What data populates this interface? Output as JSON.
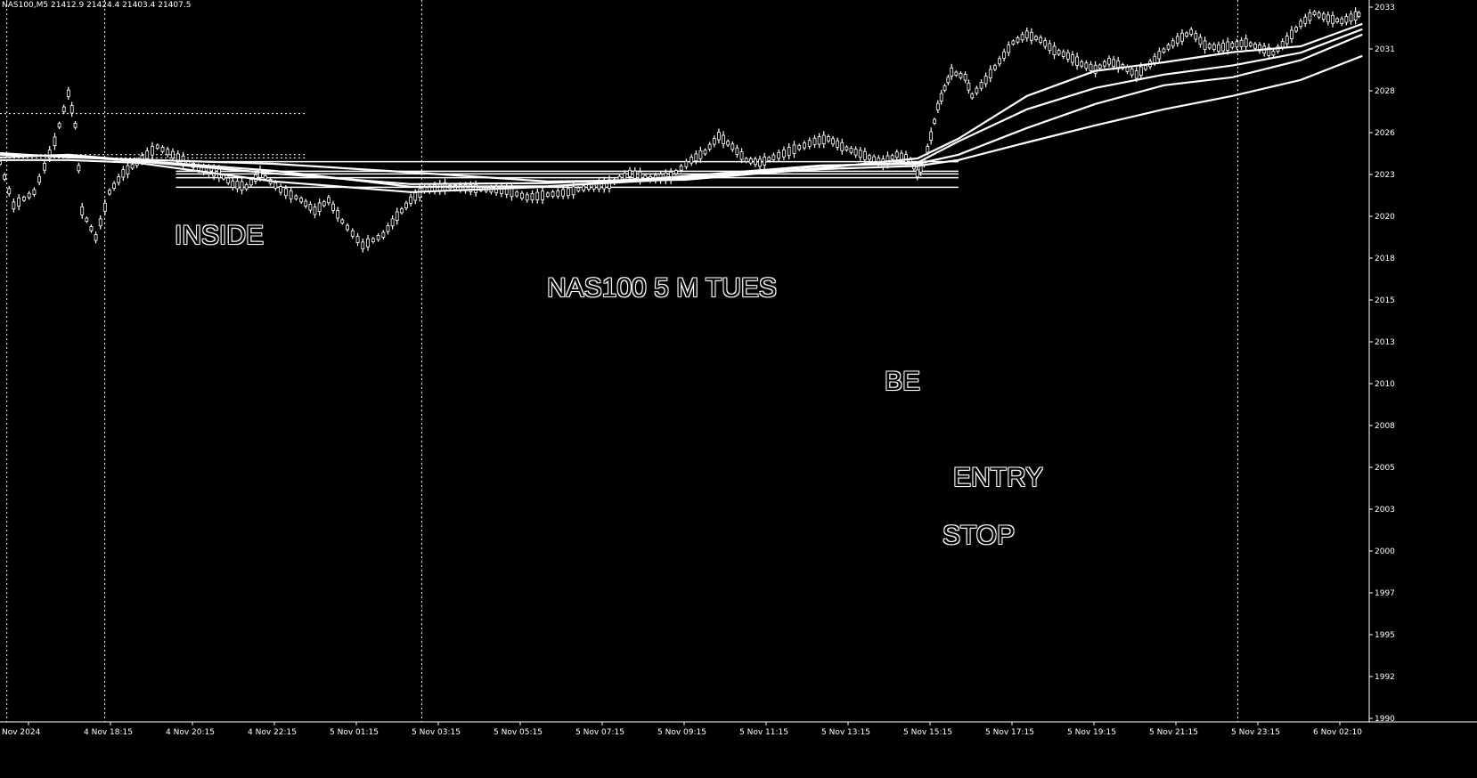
{
  "header": {
    "text": "NAS100,M5  21412.9 21424.4 21403.4 21407.5"
  },
  "annotations": {
    "inside": "INSIDE",
    "title": "NAS100 5 M   TUES",
    "be": "BE",
    "entry": "ENTRY",
    "stop": "STOP"
  },
  "colors": {
    "background": "#000000",
    "foreground": "#ffffff"
  },
  "chart_data": {
    "type": "line",
    "x_tick_labels": [
      "Nov 2024",
      "4 Nov 18:15",
      "4 Nov 20:15",
      "4 Nov 22:15",
      "5 Nov 01:15",
      "5 Nov 03:15",
      "5 Nov 05:15",
      "5 Nov 07:15",
      "5 Nov 09:15",
      "5 Nov 11:15",
      "5 Nov 13:15",
      "5 Nov 15:15",
      "5 Nov 17:15",
      "5 Nov 19:15",
      "5 Nov 21:15",
      "5 Nov 23:15",
      "6 Nov 02:10"
    ],
    "y_tick_labels": [
      "2033",
      "2031",
      "2028",
      "2026",
      "2023",
      "2020",
      "2018",
      "2015",
      "2013",
      "2010",
      "2008",
      "2005",
      "2003",
      "2000",
      "1997",
      "1995",
      "1992",
      "1990"
    ],
    "x_range": [
      0,
      200
    ],
    "y_range": [
      18993,
      20338
    ],
    "price_path": [
      [
        0,
        20040
      ],
      [
        2,
        19960
      ],
      [
        5,
        19985
      ],
      [
        8,
        20080
      ],
      [
        10,
        20170
      ],
      [
        11,
        20110
      ],
      [
        12,
        19950
      ],
      [
        14,
        19900
      ],
      [
        16,
        19985
      ],
      [
        18,
        20020
      ],
      [
        20,
        20040
      ],
      [
        23,
        20070
      ],
      [
        26,
        20050
      ],
      [
        29,
        20030
      ],
      [
        32,
        20020
      ],
      [
        34,
        20000
      ],
      [
        36,
        19995
      ],
      [
        38,
        20020
      ],
      [
        41,
        19990
      ],
      [
        44,
        19970
      ],
      [
        46,
        19950
      ],
      [
        48,
        19970
      ],
      [
        50,
        19930
      ],
      [
        53,
        19885
      ],
      [
        56,
        19905
      ],
      [
        58,
        19940
      ],
      [
        60,
        19970
      ],
      [
        62,
        19990
      ],
      [
        65,
        19995
      ],
      [
        68,
        19993
      ],
      [
        71,
        19990
      ],
      [
        74,
        19988
      ],
      [
        77,
        19975
      ],
      [
        80,
        19980
      ],
      [
        83,
        19985
      ],
      [
        86,
        19995
      ],
      [
        89,
        20000
      ],
      [
        92,
        20020
      ],
      [
        95,
        20010
      ],
      [
        98,
        20015
      ],
      [
        101,
        20045
      ],
      [
        103,
        20060
      ],
      [
        105,
        20090
      ],
      [
        107,
        20070
      ],
      [
        109,
        20045
      ],
      [
        111,
        20040
      ],
      [
        113,
        20050
      ],
      [
        116,
        20065
      ],
      [
        119,
        20080
      ],
      [
        121,
        20085
      ],
      [
        123,
        20070
      ],
      [
        125,
        20060
      ],
      [
        127,
        20050
      ],
      [
        129,
        20040
      ],
      [
        131,
        20055
      ],
      [
        133,
        20045
      ],
      [
        134,
        20020
      ],
      [
        135,
        20040
      ],
      [
        136,
        20090
      ],
      [
        137,
        20145
      ],
      [
        138,
        20180
      ],
      [
        139,
        20210
      ],
      [
        141,
        20200
      ],
      [
        142,
        20165
      ],
      [
        144,
        20195
      ],
      [
        146,
        20230
      ],
      [
        148,
        20265
      ],
      [
        150,
        20280
      ],
      [
        152,
        20270
      ],
      [
        154,
        20250
      ],
      [
        156,
        20240
      ],
      [
        158,
        20225
      ],
      [
        160,
        20215
      ],
      [
        162,
        20230
      ],
      [
        164,
        20220
      ],
      [
        166,
        20205
      ],
      [
        168,
        20225
      ],
      [
        170,
        20250
      ],
      [
        172,
        20270
      ],
      [
        174,
        20285
      ],
      [
        176,
        20260
      ],
      [
        178,
        20255
      ],
      [
        180,
        20260
      ],
      [
        182,
        20265
      ],
      [
        184,
        20255
      ],
      [
        186,
        20245
      ],
      [
        188,
        20270
      ],
      [
        190,
        20300
      ],
      [
        192,
        20320
      ],
      [
        194,
        20310
      ],
      [
        196,
        20305
      ],
      [
        198,
        20315
      ],
      [
        199,
        20320
      ]
    ],
    "moving_averages": [
      {
        "values": [
          [
            0,
            20058
          ],
          [
            10,
            20050
          ],
          [
            20,
            20046
          ],
          [
            40,
            20038
          ],
          [
            60,
            20022
          ],
          [
            80,
            20005
          ],
          [
            100,
            20008
          ],
          [
            120,
            20030
          ],
          [
            134,
            20048
          ],
          [
            140,
            20085
          ],
          [
            150,
            20165
          ],
          [
            160,
            20212
          ],
          [
            170,
            20228
          ],
          [
            180,
            20247
          ],
          [
            190,
            20258
          ],
          [
            199,
            20300
          ]
        ]
      },
      {
        "values": [
          [
            0,
            20050
          ],
          [
            10,
            20055
          ],
          [
            20,
            20044
          ],
          [
            40,
            20025
          ],
          [
            60,
            19995
          ],
          [
            80,
            19996
          ],
          [
            100,
            20010
          ],
          [
            120,
            20034
          ],
          [
            134,
            20040
          ],
          [
            140,
            20080
          ],
          [
            150,
            20140
          ],
          [
            160,
            20180
          ],
          [
            170,
            20205
          ],
          [
            180,
            20222
          ],
          [
            190,
            20246
          ],
          [
            199,
            20290
          ]
        ]
      },
      {
        "values": [
          [
            0,
            20045
          ],
          [
            10,
            20045
          ],
          [
            20,
            20040
          ],
          [
            40,
            20005
          ],
          [
            60,
            19985
          ],
          [
            80,
            19995
          ],
          [
            100,
            20015
          ],
          [
            120,
            20035
          ],
          [
            134,
            20038
          ],
          [
            140,
            20055
          ],
          [
            150,
            20105
          ],
          [
            160,
            20150
          ],
          [
            170,
            20185
          ],
          [
            180,
            20200
          ],
          [
            190,
            20232
          ],
          [
            199,
            20280
          ]
        ]
      },
      {
        "values": [
          [
            0,
            20055
          ],
          [
            10,
            20052
          ],
          [
            20,
            20043
          ],
          [
            40,
            20020
          ],
          [
            50,
            20010
          ],
          [
            60,
            20000
          ],
          [
            80,
            20002
          ],
          [
            100,
            20012
          ],
          [
            120,
            20028
          ],
          [
            134,
            20034
          ],
          [
            140,
            20045
          ],
          [
            150,
            20078
          ],
          [
            160,
            20110
          ],
          [
            170,
            20140
          ],
          [
            180,
            20165
          ],
          [
            190,
            20195
          ],
          [
            199,
            20240
          ]
        ]
      }
    ],
    "horizontal_levels": [
      20042,
      20012,
      20024,
      20019,
      19994,
      20055,
      20132,
      20049
    ],
    "vertical_session_lines": [
      1,
      15.3,
      61.6
    ]
  }
}
